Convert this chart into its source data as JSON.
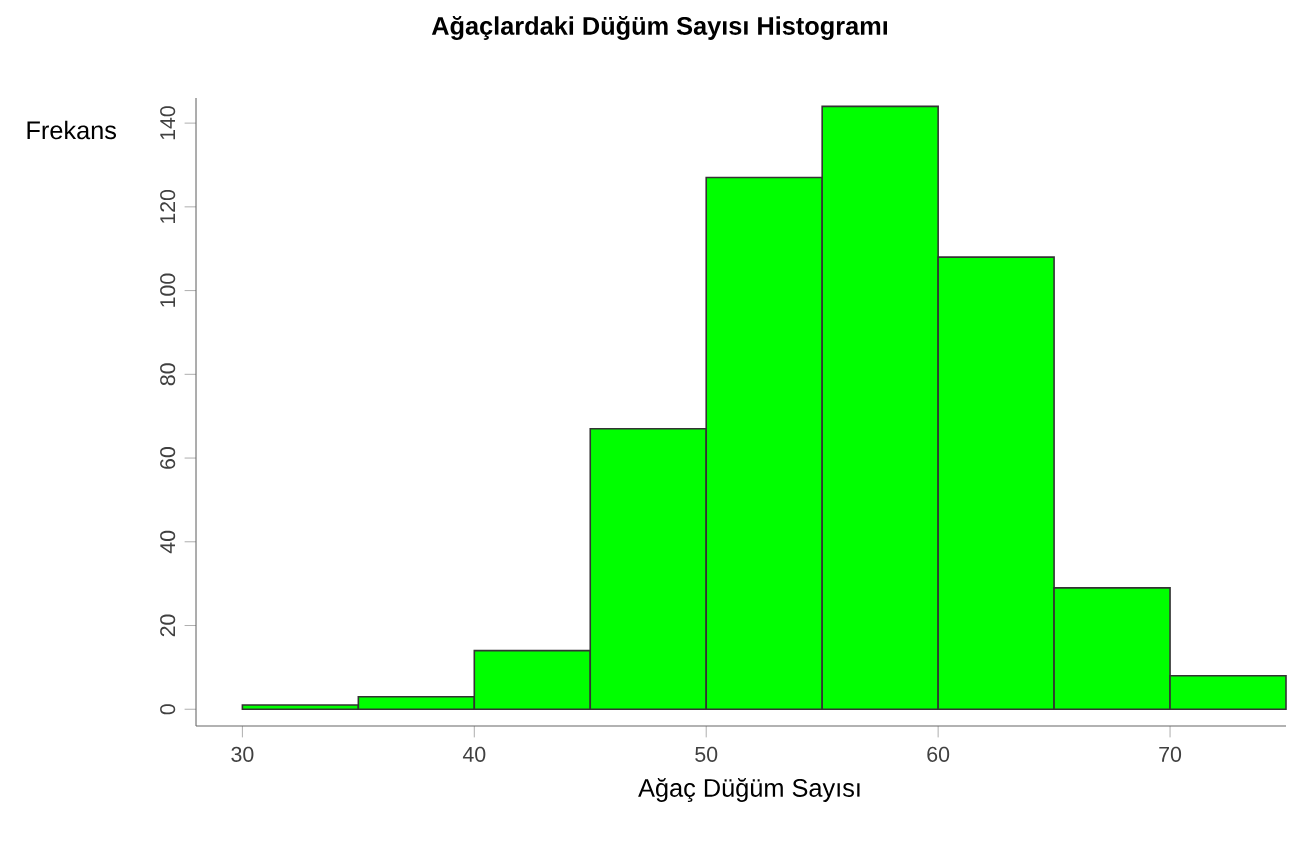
{
  "chart_data": {
    "type": "histogram",
    "title": "Ağaçlardaki Düğüm Sayısı Histogramı",
    "xlabel": "Ağaç Düğüm Sayısı",
    "ylabel": "Frekans",
    "bins": [
      30,
      35,
      40,
      45,
      50,
      55,
      60,
      65,
      70,
      75
    ],
    "values": [
      1,
      3,
      14,
      67,
      127,
      144,
      108,
      29,
      8
    ],
    "color": "#00ff00",
    "xlim": [
      28,
      75
    ],
    "ylim": [
      -4,
      146
    ],
    "xticks": [
      30,
      40,
      50,
      60,
      70
    ],
    "yticks": [
      0,
      20,
      40,
      60,
      80,
      100,
      120,
      140
    ]
  }
}
